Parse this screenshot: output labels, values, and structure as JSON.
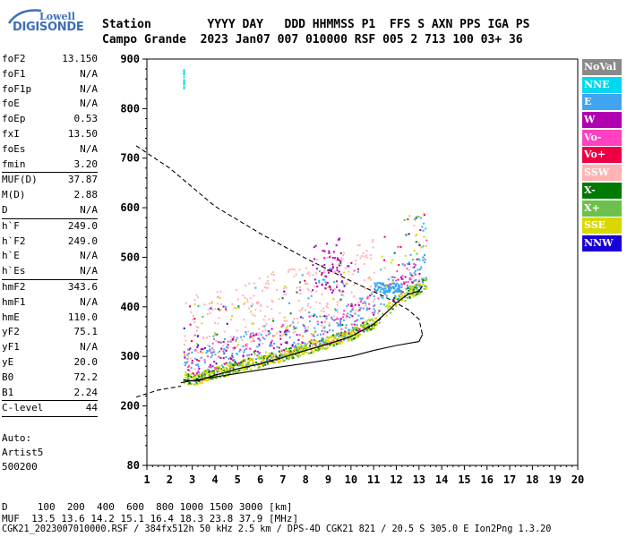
{
  "logo": {
    "line1": "Lowell",
    "line2": "DIGISONDE"
  },
  "header": {
    "line1": "Station        YYYY DAY   DDD HHMMSS P1  FFS S AXN PPS IGA PS",
    "line2": "Campo Grande  2023 Jan07 007 010000 RSF 005 2 713 100 03+ 36"
  },
  "params": [
    {
      "label": "foF2",
      "value": "13.150"
    },
    {
      "label": "foF1",
      "value": "N/A"
    },
    {
      "label": "foF1p",
      "value": "N/A"
    },
    {
      "label": "foE",
      "value": "N/A"
    },
    {
      "label": "foEp",
      "value": "0.53"
    },
    {
      "label": "fxI",
      "value": "13.50"
    },
    {
      "label": "foEs",
      "value": "N/A"
    },
    {
      "label": "fmin",
      "value": "3.20",
      "sep": true
    },
    {
      "label": "MUF(D)",
      "value": "37.87"
    },
    {
      "label": "M(D)",
      "value": "2.88"
    },
    {
      "label": "D",
      "value": "N/A",
      "sep": true
    },
    {
      "label": "h`F",
      "value": "249.0"
    },
    {
      "label": "h`F2",
      "value": "249.0"
    },
    {
      "label": "h`E",
      "value": "N/A"
    },
    {
      "label": "h`Es",
      "value": "N/A",
      "sep": true
    },
    {
      "label": "hmF2",
      "value": "343.6"
    },
    {
      "label": "hmF1",
      "value": "N/A"
    },
    {
      "label": "hmE",
      "value": "110.0"
    },
    {
      "label": "yF2",
      "value": "75.1"
    },
    {
      "label": "yF1",
      "value": "N/A"
    },
    {
      "label": "yE",
      "value": "20.0"
    },
    {
      "label": "B0",
      "value": "72.2"
    },
    {
      "label": "B1",
      "value": "2.24",
      "sep": true
    },
    {
      "label": "C-level",
      "value": "44",
      "sep": true
    }
  ],
  "auto": [
    "Auto:",
    "Artist5",
    "500200"
  ],
  "legend": [
    {
      "label": "NoVal",
      "color": "#8a8a8a"
    },
    {
      "label": "NNE",
      "color": "#00d8f0"
    },
    {
      "label": "E",
      "color": "#40a4f0"
    },
    {
      "label": "W",
      "color": "#b000b0"
    },
    {
      "label": "Vo-",
      "color": "#ff40c0"
    },
    {
      "label": "Vo+",
      "color": "#ee0044"
    },
    {
      "label": "SSW",
      "color": "#ffb4b4"
    },
    {
      "label": "X-",
      "color": "#007a00"
    },
    {
      "label": "X+",
      "color": "#6cc04c"
    },
    {
      "label": "SSE",
      "color": "#d8d800"
    },
    {
      "label": "NNW",
      "color": "#1a00d8"
    }
  ],
  "footer": {
    "line1": "D     100  200  400  600  800 1000 1500 3000 [km]",
    "line2": "MUF  13.5 13.6 14.2 15.1 16.4 18.3 23.8 37.9 [MHz]",
    "line3": "CGK21_2023007010000.RSF / 384fx512h 50 kHz 2.5 km / DPS-4D CGK21 821 / 20.5 S 305.0 E Ion2Png 1.3.20"
  },
  "chart_data": {
    "type": "scatter",
    "x_ticks": [
      "1",
      "2",
      "3",
      "4",
      "5",
      "6",
      "7",
      "8",
      "9",
      "10",
      "11",
      "12",
      "13",
      "14",
      "15",
      "16",
      "17",
      "18",
      "19",
      "20"
    ],
    "y_ticks": [
      "80",
      "200",
      "300",
      "400",
      "500",
      "600",
      "700",
      "800",
      "900"
    ],
    "xlim": [
      1,
      20
    ],
    "ylim": [
      80,
      900
    ],
    "trace_freq_mhz": [
      2.6,
      3.2,
      4.0,
      5.0,
      6.0,
      7.0,
      8.0,
      9.0,
      10.0,
      11.0,
      11.6,
      12.0,
      12.5,
      13.0,
      13.15
    ],
    "trace_height_km": [
      252,
      250,
      262,
      275,
      285,
      298,
      312,
      325,
      340,
      365,
      390,
      408,
      425,
      432,
      442
    ],
    "profile_freq_mhz": [
      0.53,
      2.0,
      4.0,
      6.0,
      8.0,
      10.0,
      11.5,
      12.5,
      13.0,
      13.15,
      13.0,
      12.0,
      11.0,
      10.0,
      8.0,
      6.0,
      4.5,
      3.5,
      2.5
    ],
    "profile_height_km": [
      725,
      680,
      603,
      548,
      498,
      452,
      420,
      395,
      375,
      344,
      330,
      322,
      312,
      300,
      286,
      273,
      262,
      255,
      247
    ],
    "profile_low_freq_mhz": [
      0.53,
      1.5,
      2.5
    ],
    "profile_low_height_km": [
      218,
      232,
      240
    ]
  }
}
